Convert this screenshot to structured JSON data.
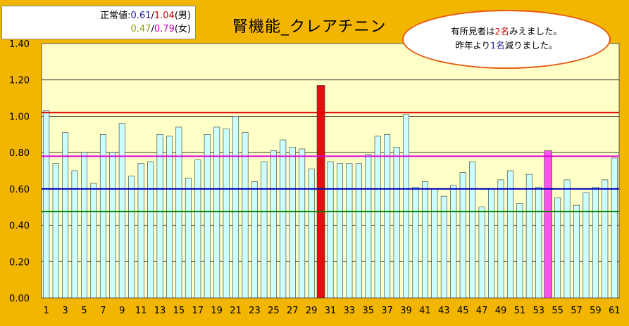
{
  "title": "腎機能_クレアチニン",
  "legend": {
    "label": "正常値:",
    "male_low": "0.61",
    "sep1": "/",
    "male_high": "1.04",
    "male_tag": "(男)",
    "female_low": "0.47",
    "sep2": "/",
    "female_high": "0.79",
    "female_tag": "(女)"
  },
  "callout": {
    "line1_pre": "有所見者は",
    "line1_num": "2名",
    "line1_post": "みえました。",
    "line2_pre": "昨年より",
    "line2_num": "1名",
    "line2_post": "減りました。"
  },
  "colors": {
    "background": "#f2b600",
    "plot_area": "#ffffc8",
    "bar_normal": "#ccffff",
    "bar_highlight_red": "#e01010",
    "bar_highlight_magenta": "#ff55ee",
    "line_male_high": "#e00000",
    "line_female_high": "#e000e0",
    "line_male_low": "#0000c0",
    "line_female_low": "#008000"
  },
  "chart_data": {
    "type": "bar",
    "title": "腎機能_クレアチニン",
    "ylim": [
      0,
      1.4
    ],
    "y_ticks": [
      "0.00",
      "0.20",
      "0.40",
      "0.60",
      "0.80",
      "1.00",
      "1.20",
      "1.40"
    ],
    "x_tick_labels": [
      "1",
      "3",
      "5",
      "7",
      "9",
      "11",
      "13",
      "15",
      "17",
      "19",
      "21",
      "23",
      "25",
      "27",
      "29",
      "31",
      "33",
      "35",
      "37",
      "39",
      "41",
      "43",
      "45",
      "47",
      "49",
      "51",
      "53",
      "55",
      "57",
      "59",
      "61"
    ],
    "grid": true,
    "categories": [
      1,
      2,
      3,
      4,
      5,
      6,
      7,
      8,
      9,
      10,
      11,
      12,
      13,
      14,
      15,
      16,
      17,
      18,
      19,
      20,
      21,
      22,
      23,
      24,
      25,
      26,
      27,
      28,
      29,
      30,
      31,
      32,
      33,
      34,
      35,
      36,
      37,
      38,
      39,
      40,
      41,
      42,
      43,
      44,
      45,
      46,
      47,
      48,
      49,
      50,
      51,
      52,
      53,
      54,
      55,
      56,
      57,
      58,
      59,
      60,
      61
    ],
    "values": [
      1.03,
      0.74,
      0.91,
      0.7,
      0.8,
      0.63,
      0.9,
      0.8,
      0.96,
      0.67,
      0.74,
      0.75,
      0.9,
      0.89,
      0.94,
      0.66,
      0.76,
      0.9,
      0.94,
      0.93,
      1.0,
      0.91,
      0.64,
      0.75,
      0.81,
      0.87,
      0.83,
      0.82,
      0.71,
      1.17,
      0.75,
      0.74,
      0.74,
      0.74,
      0.79,
      0.89,
      0.9,
      0.83,
      1.01,
      0.61,
      0.64,
      0.6,
      0.56,
      0.62,
      0.69,
      0.75,
      0.5,
      0.6,
      0.65,
      0.7,
      0.52,
      0.68,
      0.61,
      0.81,
      0.55,
      0.65,
      0.51,
      0.58,
      0.61,
      0.65,
      0.77
    ],
    "highlight_red_index": 29,
    "highlight_magenta_index": 53,
    "reference_lines": [
      {
        "value": 1.02,
        "color": "#e00000"
      },
      {
        "value": 0.78,
        "color": "#e000e0"
      },
      {
        "value": 0.6,
        "color": "#0000c0"
      },
      {
        "value": 0.475,
        "color": "#008000"
      }
    ]
  }
}
